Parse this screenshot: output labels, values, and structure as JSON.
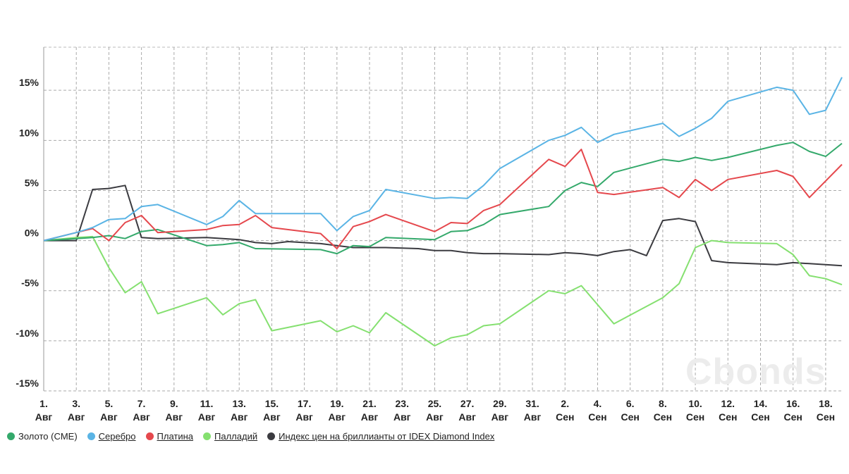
{
  "chart_data": {
    "type": "line",
    "title": "",
    "xlabel": "",
    "ylabel": "",
    "ylim": [
      -15,
      19.3
    ],
    "yticks": [
      {
        "v": 15,
        "label": "15%"
      },
      {
        "v": 10,
        "label": "10%"
      },
      {
        "v": 5,
        "label": "5%"
      },
      {
        "v": 0,
        "label": "0%"
      },
      {
        "v": -5,
        "label": "-5%"
      },
      {
        "v": -10,
        "label": "-10%"
      },
      {
        "v": -15,
        "label": "-15%"
      }
    ],
    "x_unit": "day index from 1 Aug",
    "xlim": [
      0,
      49
    ],
    "xticks": [
      {
        "d": 0,
        "l1": "1.",
        "l2": "Авг"
      },
      {
        "d": 2,
        "l1": "3.",
        "l2": "Авг"
      },
      {
        "d": 4,
        "l1": "5.",
        "l2": "Авг"
      },
      {
        "d": 6,
        "l1": "7.",
        "l2": "Авг"
      },
      {
        "d": 8,
        "l1": "9.",
        "l2": "Авг"
      },
      {
        "d": 10,
        "l1": "11.",
        "l2": "Авг"
      },
      {
        "d": 12,
        "l1": "13.",
        "l2": "Авг"
      },
      {
        "d": 14,
        "l1": "15.",
        "l2": "Авг"
      },
      {
        "d": 16,
        "l1": "17.",
        "l2": "Авг"
      },
      {
        "d": 18,
        "l1": "19.",
        "l2": "Авг"
      },
      {
        "d": 20,
        "l1": "21.",
        "l2": "Авг"
      },
      {
        "d": 22,
        "l1": "23.",
        "l2": "Авг"
      },
      {
        "d": 24,
        "l1": "25.",
        "l2": "Авг"
      },
      {
        "d": 26,
        "l1": "27.",
        "l2": "Авг"
      },
      {
        "d": 28,
        "l1": "29.",
        "l2": "Авг"
      },
      {
        "d": 30,
        "l1": "31.",
        "l2": "Авг"
      },
      {
        "d": 32,
        "l1": "2.",
        "l2": "Сен"
      },
      {
        "d": 34,
        "l1": "4.",
        "l2": "Сен"
      },
      {
        "d": 36,
        "l1": "6.",
        "l2": "Сен"
      },
      {
        "d": 38,
        "l1": "8.",
        "l2": "Сен"
      },
      {
        "d": 40,
        "l1": "10.",
        "l2": "Сен"
      },
      {
        "d": 42,
        "l1": "12.",
        "l2": "Сен"
      },
      {
        "d": 44,
        "l1": "14.",
        "l2": "Сен"
      },
      {
        "d": 46,
        "l1": "16.",
        "l2": "Сен"
      },
      {
        "d": 48,
        "l1": "18.",
        "l2": "Сен"
      }
    ],
    "grid": true,
    "legend_position": "bottom-left",
    "series": [
      {
        "name": "Золото (CME)",
        "color": "#34a96b",
        "link": false,
        "points": [
          [
            0,
            0
          ],
          [
            2,
            0.2
          ],
          [
            3,
            0.3
          ],
          [
            4,
            0.5
          ],
          [
            5,
            0.2
          ],
          [
            6,
            0.9
          ],
          [
            7,
            1.1
          ],
          [
            10,
            -0.5
          ],
          [
            11,
            -0.4
          ],
          [
            12,
            -0.2
          ],
          [
            13,
            -0.8
          ],
          [
            17,
            -0.9
          ],
          [
            18,
            -1.3
          ],
          [
            19,
            -0.5
          ],
          [
            20,
            -0.6
          ],
          [
            21,
            0.3
          ],
          [
            24,
            0.1
          ],
          [
            25,
            0.9
          ],
          [
            26,
            1.0
          ],
          [
            27,
            1.6
          ],
          [
            28,
            2.6
          ],
          [
            31,
            3.4
          ],
          [
            32,
            5.0
          ],
          [
            33,
            5.8
          ],
          [
            34,
            5.4
          ],
          [
            35,
            6.8
          ],
          [
            38,
            8.1
          ],
          [
            39,
            7.9
          ],
          [
            40,
            8.3
          ],
          [
            41,
            8.0
          ],
          [
            42,
            8.3
          ],
          [
            45,
            9.5
          ],
          [
            46,
            9.8
          ],
          [
            47,
            8.9
          ],
          [
            48,
            8.4
          ],
          [
            49,
            9.7
          ]
        ]
      },
      {
        "name": "Серебро",
        "color": "#5ab4e5",
        "link": true,
        "points": [
          [
            0,
            0
          ],
          [
            2,
            0.8
          ],
          [
            3,
            1.3
          ],
          [
            4,
            2.1
          ],
          [
            5,
            2.2
          ],
          [
            6,
            3.4
          ],
          [
            7,
            3.6
          ],
          [
            10,
            1.6
          ],
          [
            11,
            2.4
          ],
          [
            12,
            4.0
          ],
          [
            13,
            2.7
          ],
          [
            17,
            2.7
          ],
          [
            18,
            1.0
          ],
          [
            19,
            2.4
          ],
          [
            20,
            3.0
          ],
          [
            21,
            5.1
          ],
          [
            24,
            4.2
          ],
          [
            25,
            4.3
          ],
          [
            26,
            4.2
          ],
          [
            27,
            5.5
          ],
          [
            28,
            7.2
          ],
          [
            31,
            10.0
          ],
          [
            32,
            10.5
          ],
          [
            33,
            11.3
          ],
          [
            34,
            9.8
          ],
          [
            35,
            10.6
          ],
          [
            38,
            11.7
          ],
          [
            39,
            10.4
          ],
          [
            40,
            11.2
          ],
          [
            41,
            12.2
          ],
          [
            42,
            13.9
          ],
          [
            45,
            15.3
          ],
          [
            46,
            15.0
          ],
          [
            47,
            12.6
          ],
          [
            48,
            13.0
          ],
          [
            49,
            16.3
          ]
        ]
      },
      {
        "name": "Платина",
        "color": "#e5484d",
        "link": true,
        "points": [
          [
            0,
            0
          ],
          [
            2,
            0.8
          ],
          [
            3,
            1.2
          ],
          [
            4,
            0
          ],
          [
            5,
            1.8
          ],
          [
            6,
            2.5
          ],
          [
            7,
            0.8
          ],
          [
            10,
            1.1
          ],
          [
            11,
            1.5
          ],
          [
            12,
            1.6
          ],
          [
            13,
            2.5
          ],
          [
            14,
            1.3
          ],
          [
            17,
            0.7
          ],
          [
            18,
            -0.8
          ],
          [
            19,
            1.4
          ],
          [
            20,
            1.9
          ],
          [
            21,
            2.6
          ],
          [
            24,
            0.9
          ],
          [
            25,
            1.8
          ],
          [
            26,
            1.7
          ],
          [
            27,
            3.0
          ],
          [
            28,
            3.6
          ],
          [
            31,
            8.1
          ],
          [
            32,
            7.4
          ],
          [
            33,
            9.1
          ],
          [
            34,
            4.8
          ],
          [
            35,
            4.6
          ],
          [
            38,
            5.3
          ],
          [
            39,
            4.3
          ],
          [
            40,
            6.1
          ],
          [
            41,
            5.0
          ],
          [
            42,
            6.1
          ],
          [
            45,
            7.0
          ],
          [
            46,
            6.4
          ],
          [
            47,
            4.3
          ],
          [
            49,
            7.6
          ]
        ]
      },
      {
        "name": "Палладий",
        "color": "#85e070",
        "link": true,
        "points": [
          [
            0,
            0
          ],
          [
            2,
            0.3
          ],
          [
            3,
            0.4
          ],
          [
            4,
            -2.7
          ],
          [
            5,
            -5.2
          ],
          [
            6,
            -4.1
          ],
          [
            7,
            -7.3
          ],
          [
            10,
            -5.7
          ],
          [
            11,
            -7.4
          ],
          [
            12,
            -6.3
          ],
          [
            13,
            -5.9
          ],
          [
            14,
            -9.0
          ],
          [
            17,
            -8.0
          ],
          [
            18,
            -9.1
          ],
          [
            19,
            -8.5
          ],
          [
            20,
            -9.2
          ],
          [
            21,
            -7.2
          ],
          [
            24,
            -10.5
          ],
          [
            25,
            -9.7
          ],
          [
            26,
            -9.4
          ],
          [
            27,
            -8.5
          ],
          [
            28,
            -8.3
          ],
          [
            31,
            -5.0
          ],
          [
            32,
            -5.3
          ],
          [
            33,
            -4.5
          ],
          [
            34,
            -6.4
          ],
          [
            35,
            -8.3
          ],
          [
            38,
            -5.7
          ],
          [
            39,
            -4.3
          ],
          [
            40,
            -0.7
          ],
          [
            41,
            0
          ],
          [
            42,
            -0.2
          ],
          [
            45,
            -0.3
          ],
          [
            46,
            -1.4
          ],
          [
            47,
            -3.5
          ],
          [
            48,
            -3.8
          ],
          [
            49,
            -4.4
          ]
        ]
      },
      {
        "name": "Индекс цен на бриллианты от IDEX Diamond Index",
        "color": "#3b3b40",
        "link": true,
        "points": [
          [
            0,
            0
          ],
          [
            2,
            0
          ],
          [
            3,
            5.1
          ],
          [
            4,
            5.2
          ],
          [
            5,
            5.5
          ],
          [
            6,
            0.3
          ],
          [
            7,
            0.2
          ],
          [
            10,
            0.3
          ],
          [
            11,
            0.2
          ],
          [
            12,
            0.1
          ],
          [
            13,
            -0.2
          ],
          [
            14,
            -0.3
          ],
          [
            15,
            -0.1
          ],
          [
            17,
            -0.3
          ],
          [
            18,
            -0.5
          ],
          [
            19,
            -0.7
          ],
          [
            21,
            -0.7
          ],
          [
            23,
            -0.8
          ],
          [
            24,
            -1.0
          ],
          [
            25,
            -1.0
          ],
          [
            26,
            -1.2
          ],
          [
            27,
            -1.3
          ],
          [
            28,
            -1.3
          ],
          [
            31,
            -1.4
          ],
          [
            32,
            -1.2
          ],
          [
            33,
            -1.3
          ],
          [
            34,
            -1.5
          ],
          [
            35,
            -1.1
          ],
          [
            36,
            -0.9
          ],
          [
            37,
            -1.5
          ],
          [
            38,
            2.0
          ],
          [
            39,
            2.2
          ],
          [
            40,
            1.9
          ],
          [
            41,
            -2.0
          ],
          [
            42,
            -2.2
          ],
          [
            45,
            -2.4
          ],
          [
            46,
            -2.2
          ],
          [
            47,
            -2.3
          ],
          [
            49,
            -2.5
          ]
        ]
      }
    ]
  },
  "watermark": "Cbonds"
}
